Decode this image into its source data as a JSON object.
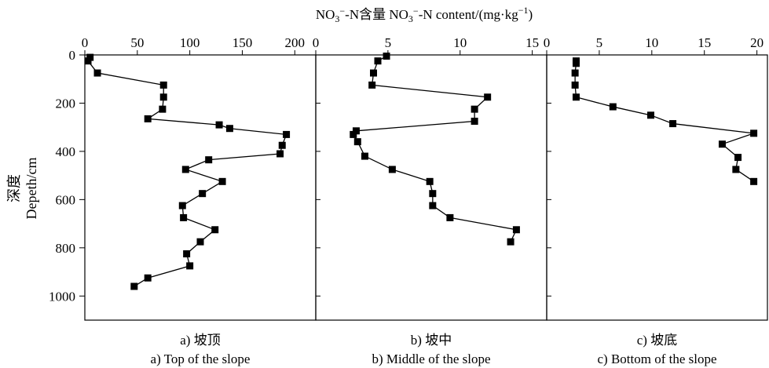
{
  "chart_data": {
    "type": "line",
    "title_main": "NO",
    "title_sub": "3",
    "title_sup": "−",
    "title_rest": "-N含量  NO",
    "title_sub2": "3",
    "title_sup2": "−",
    "title_rest2": "-N content/(mg·kg",
    "title_sup3": "−1",
    "title_end": ")",
    "ylabel_cn": "深度",
    "ylabel_en": "Depeth/cm",
    "ylim": [
      0,
      1100
    ],
    "yticks": [
      "0",
      "200",
      "400",
      "600",
      "800",
      "1000"
    ],
    "ytick_values": [
      0,
      200,
      400,
      600,
      800,
      1000
    ],
    "panels": [
      {
        "caption_cn": "a) 坡顶",
        "caption_en": "a) Top of the slope",
        "xlim": [
          0,
          220
        ],
        "xticks": [
          "0",
          "50",
          "100",
          "150",
          "200"
        ],
        "xtick_values": [
          0,
          50,
          100,
          150,
          200
        ],
        "x": [
          5,
          3,
          12,
          75,
          75,
          74,
          60,
          128,
          138,
          192,
          188,
          186,
          118,
          96,
          131,
          112,
          93,
          94,
          124,
          110,
          97,
          100,
          60,
          47
        ],
        "y": [
          10,
          25,
          75,
          125,
          175,
          225,
          265,
          290,
          305,
          330,
          375,
          410,
          435,
          475,
          525,
          575,
          625,
          675,
          725,
          775,
          825,
          875,
          925,
          960
        ]
      },
      {
        "caption_cn": "b) 坡中",
        "caption_en": "b) Middle of the slope",
        "xlim": [
          0,
          16
        ],
        "xticks": [
          "0",
          "5",
          "10",
          "15"
        ],
        "xtick_values": [
          0,
          5,
          10,
          15
        ],
        "x": [
          4.9,
          4.3,
          4.0,
          3.9,
          11.9,
          11.0,
          11.0,
          2.8,
          2.6,
          2.9,
          3.4,
          5.3,
          7.9,
          8.1,
          8.1,
          9.3,
          13.9,
          13.5
        ],
        "y": [
          5,
          25,
          75,
          125,
          175,
          225,
          275,
          315,
          330,
          360,
          420,
          475,
          525,
          575,
          625,
          675,
          725,
          775
        ]
      },
      {
        "caption_cn": "c) 坡底",
        "caption_en": "c) Bottom of the slope",
        "xlim": [
          0,
          21
        ],
        "xticks": [
          "0",
          "5",
          "10",
          "15",
          "20"
        ],
        "xtick_values": [
          0,
          5,
          10,
          15,
          20
        ],
        "x": [
          2.8,
          2.8,
          2.7,
          2.7,
          2.8,
          6.3,
          9.9,
          12.0,
          19.7,
          16.7,
          18.2,
          18.0,
          19.7
        ],
        "y": [
          25,
          35,
          75,
          125,
          175,
          215,
          250,
          285,
          325,
          370,
          425,
          475,
          525
        ]
      }
    ]
  }
}
